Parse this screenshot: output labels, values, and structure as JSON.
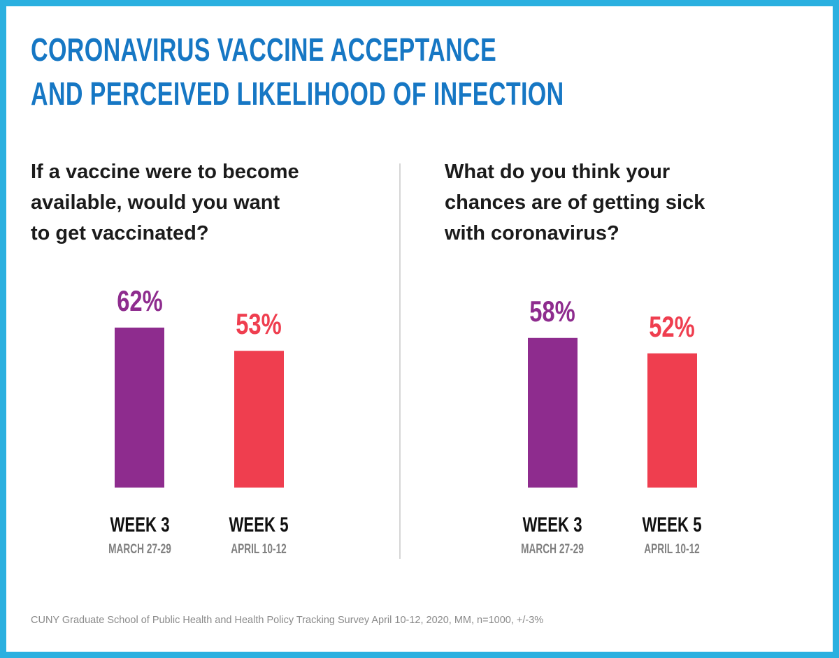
{
  "title": {
    "line1": "CORONAVIRUS VACCINE ACCEPTANCE",
    "line2": "AND PERCEIVED LIKELIHOOD OF INFECTION"
  },
  "source": "CUNY Graduate School of Public Health and Health Policy Tracking Survey April 10-12, 2020, MM, n=1000, +/-3%",
  "colors": {
    "title": "#1677c4",
    "frame": "#2bb0e0",
    "week3": "#8e2c8e",
    "week5": "#ef3e4f"
  },
  "chart_data": [
    {
      "type": "bar",
      "title": [
        "If a vaccine were to become",
        "available, would you want",
        "to get vaccinated?"
      ],
      "categories": [
        "WEEK 3",
        "WEEK 5"
      ],
      "sublabels": [
        "MARCH 27-29",
        "APRIL 10-12"
      ],
      "values": [
        62,
        53
      ],
      "data_labels": [
        "62%",
        "53%"
      ],
      "unit": "%",
      "grid": false
    },
    {
      "type": "bar",
      "title": [
        "What do you think your",
        "chances are of getting sick",
        "with coronavirus?"
      ],
      "categories": [
        "WEEK 3",
        "WEEK 5"
      ],
      "sublabels": [
        "MARCH 27-29",
        "APRIL 10-12"
      ],
      "values": [
        58,
        52
      ],
      "data_labels": [
        "58%",
        "52%"
      ],
      "unit": "%",
      "grid": false
    }
  ]
}
